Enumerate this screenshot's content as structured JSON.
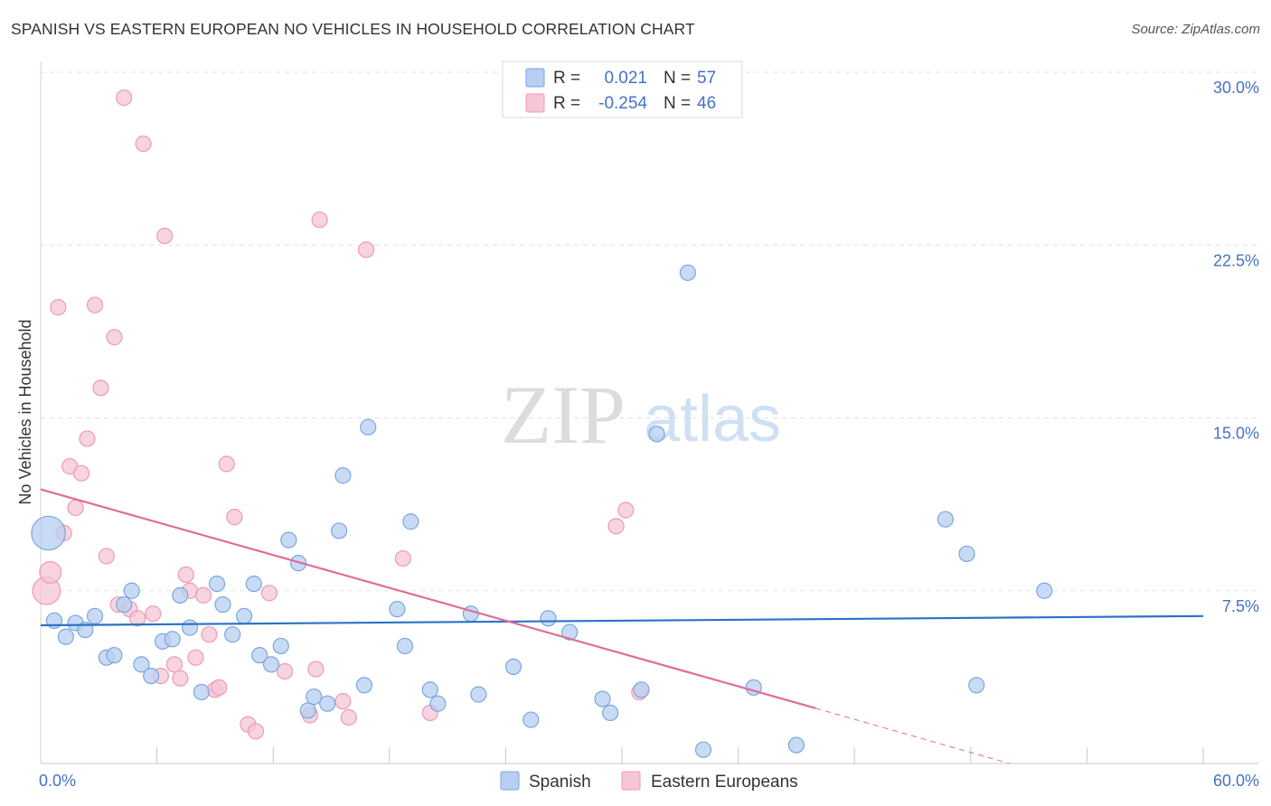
{
  "header": {
    "title": "SPANISH VS EASTERN EUROPEAN NO VEHICLES IN HOUSEHOLD CORRELATION CHART",
    "source": "Source: ZipAtlas.com"
  },
  "watermark": {
    "zip": "ZIP",
    "atlas": "atlas"
  },
  "colors": {
    "spanish": "#7aa6e0",
    "spanish_fill": "#b7cff0",
    "spanish_line": "#2a72c9",
    "eastern": "#ee9ab5",
    "eastern_fill": "#f6c6d6",
    "eastern_line": "#e06c96",
    "value_text": "#4472c4"
  },
  "legend": {
    "rows": [
      {
        "r_label": "R =",
        "r_value": "0.021",
        "n_label": "N =",
        "n_value": "57"
      },
      {
        "r_label": "R =",
        "r_value": "-0.254",
        "n_label": "N =",
        "n_value": "46"
      }
    ]
  },
  "chart_data": {
    "type": "scatter",
    "title": "SPANISH VS EASTERN EUROPEAN NO VEHICLES IN HOUSEHOLD CORRELATION CHART",
    "xlabel": "",
    "ylabel": "No Vehicles in Household",
    "xlim": [
      0,
      60
    ],
    "ylim": [
      0,
      30
    ],
    "x_ticks": [
      "0.0%",
      "60.0%"
    ],
    "y_ticks": [
      {
        "value": 7.5,
        "label": "7.5%"
      },
      {
        "value": 15,
        "label": "15.0%"
      },
      {
        "value": 22.5,
        "label": "22.5%"
      },
      {
        "value": 30,
        "label": "30.0%"
      }
    ],
    "legend_position": "bottom",
    "series": [
      {
        "name": "Spanish",
        "r": 0.021,
        "n": 57,
        "trend": {
          "x": [
            0,
            60
          ],
          "y": [
            6.0,
            6.4
          ]
        },
        "points": [
          [
            0.4,
            10.0,
            2.2
          ],
          [
            0.7,
            6.2,
            1
          ],
          [
            1.3,
            5.5,
            1
          ],
          [
            1.8,
            6.1,
            1
          ],
          [
            2.3,
            5.8,
            1
          ],
          [
            2.8,
            6.4,
            1
          ],
          [
            3.4,
            4.6,
            1
          ],
          [
            3.8,
            4.7,
            1
          ],
          [
            4.3,
            6.9,
            1
          ],
          [
            4.7,
            7.5,
            1
          ],
          [
            5.2,
            4.3,
            1
          ],
          [
            5.7,
            3.8,
            1
          ],
          [
            6.3,
            5.3,
            1
          ],
          [
            6.8,
            5.4,
            1
          ],
          [
            7.2,
            7.3,
            1
          ],
          [
            7.7,
            5.9,
            1
          ],
          [
            8.3,
            3.1,
            1
          ],
          [
            9.1,
            7.8,
            1
          ],
          [
            9.4,
            6.9,
            1
          ],
          [
            9.9,
            5.6,
            1
          ],
          [
            10.5,
            6.4,
            1
          ],
          [
            11.0,
            7.8,
            1
          ],
          [
            11.3,
            4.7,
            1
          ],
          [
            11.9,
            4.3,
            1
          ],
          [
            12.4,
            5.1,
            1
          ],
          [
            12.8,
            9.7,
            1
          ],
          [
            13.3,
            8.7,
            1
          ],
          [
            13.8,
            2.3,
            1
          ],
          [
            14.1,
            2.9,
            1
          ],
          [
            14.8,
            2.6,
            1
          ],
          [
            15.4,
            10.1,
            1
          ],
          [
            15.6,
            12.5,
            1
          ],
          [
            16.7,
            3.4,
            1
          ],
          [
            16.9,
            14.6,
            1
          ],
          [
            18.4,
            6.7,
            1
          ],
          [
            18.8,
            5.1,
            1
          ],
          [
            19.1,
            10.5,
            1
          ],
          [
            20.1,
            3.2,
            1
          ],
          [
            20.5,
            2.6,
            1
          ],
          [
            22.2,
            6.5,
            1
          ],
          [
            22.6,
            3.0,
            1
          ],
          [
            24.4,
            4.2,
            1
          ],
          [
            25.3,
            1.9,
            1
          ],
          [
            26.2,
            6.3,
            1
          ],
          [
            27.3,
            5.7,
            1
          ],
          [
            29.0,
            2.8,
            1
          ],
          [
            29.4,
            2.2,
            1
          ],
          [
            31.0,
            3.2,
            1
          ],
          [
            31.8,
            14.3,
            1
          ],
          [
            33.4,
            21.3,
            1
          ],
          [
            34.2,
            0.6,
            1
          ],
          [
            36.8,
            3.3,
            1
          ],
          [
            39.0,
            0.8,
            1
          ],
          [
            46.7,
            10.6,
            1
          ],
          [
            47.8,
            9.1,
            1
          ],
          [
            48.3,
            3.4,
            1
          ],
          [
            51.8,
            7.5,
            1
          ]
        ]
      },
      {
        "name": "Eastern Europeans",
        "r": -0.254,
        "n": 46,
        "trend": {
          "x": [
            0,
            40
          ],
          "y": [
            11.9,
            2.4
          ]
        },
        "trend_dashed": {
          "x": [
            40,
            50
          ],
          "y": [
            2.4,
            0.0
          ]
        },
        "points": [
          [
            0.3,
            7.5,
            1.8
          ],
          [
            0.5,
            8.3,
            1.4
          ],
          [
            0.9,
            19.8,
            1
          ],
          [
            1.2,
            10.0,
            1
          ],
          [
            1.5,
            12.9,
            1
          ],
          [
            1.8,
            11.1,
            1
          ],
          [
            2.1,
            12.6,
            1
          ],
          [
            2.4,
            14.1,
            1
          ],
          [
            2.8,
            19.9,
            1
          ],
          [
            3.1,
            16.3,
            1
          ],
          [
            3.4,
            9.0,
            1
          ],
          [
            3.8,
            18.5,
            1
          ],
          [
            4.0,
            6.9,
            1
          ],
          [
            4.3,
            28.9,
            1
          ],
          [
            4.6,
            6.7,
            1
          ],
          [
            5.0,
            6.3,
            1
          ],
          [
            5.3,
            26.9,
            1
          ],
          [
            5.8,
            6.5,
            1
          ],
          [
            6.2,
            3.8,
            1
          ],
          [
            6.4,
            22.9,
            1
          ],
          [
            6.9,
            4.3,
            1
          ],
          [
            7.2,
            3.7,
            1
          ],
          [
            7.5,
            8.2,
            1
          ],
          [
            7.7,
            7.5,
            1
          ],
          [
            8.0,
            4.6,
            1
          ],
          [
            8.4,
            7.3,
            1
          ],
          [
            8.7,
            5.6,
            1
          ],
          [
            9.0,
            3.2,
            1
          ],
          [
            9.2,
            3.3,
            1
          ],
          [
            9.6,
            13.0,
            1
          ],
          [
            10.0,
            10.7,
            1
          ],
          [
            10.7,
            1.7,
            1
          ],
          [
            11.1,
            1.4,
            1
          ],
          [
            11.8,
            7.4,
            1
          ],
          [
            12.6,
            4.0,
            1
          ],
          [
            13.9,
            2.1,
            1
          ],
          [
            14.2,
            4.1,
            1
          ],
          [
            14.4,
            23.6,
            1
          ],
          [
            15.6,
            2.7,
            1
          ],
          [
            15.9,
            2.0,
            1
          ],
          [
            16.8,
            22.3,
            1
          ],
          [
            18.7,
            8.9,
            1
          ],
          [
            20.1,
            2.2,
            1
          ],
          [
            29.7,
            10.3,
            1
          ],
          [
            30.2,
            11.0,
            1
          ],
          [
            30.9,
            3.1,
            1
          ]
        ]
      }
    ]
  }
}
